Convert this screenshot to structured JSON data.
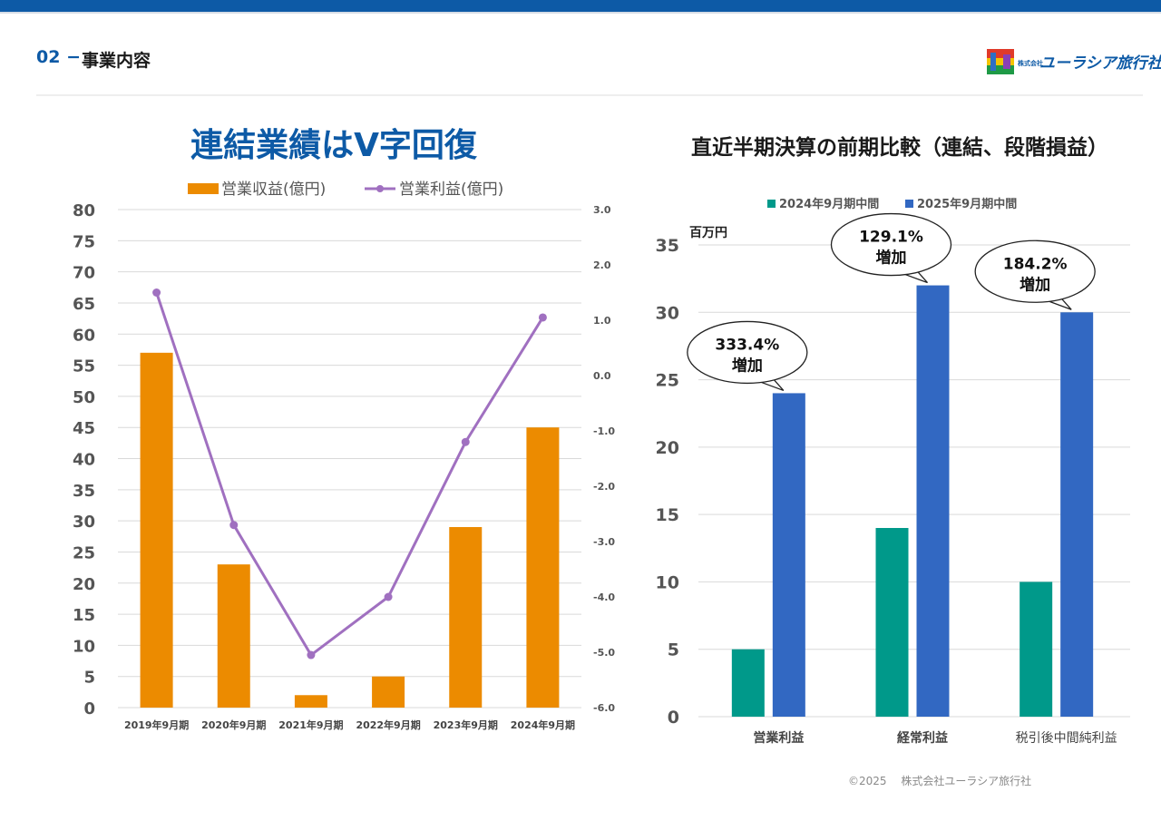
{
  "header": {
    "section_number": "02",
    "section_dash": "−",
    "section_title": "事業内容",
    "logo_badge_text": "株式会社",
    "logo_text": "ユーラシア旅行社"
  },
  "footer": {
    "copyright": "©2025　 株式会社ユーラシア旅行社"
  },
  "colors": {
    "primary": "#0d5aa6",
    "bar_orange": "#ec8b00",
    "line_purple": "#a070c0",
    "bar_teal": "#00998a",
    "bar_blue": "#3268c2",
    "title_blue": "#0d5aa6"
  },
  "chart_data": [
    {
      "type": "bar",
      "title": "連結業績はV字回復",
      "categories": [
        "2019年9月期",
        "2020年9月期",
        "2021年9月期",
        "2022年9月期",
        "2023年9月期",
        "2024年9月期"
      ],
      "series": [
        {
          "name": "営業収益(億円)",
          "type": "bar",
          "axis": "left",
          "values": [
            57,
            23,
            2,
            5,
            29,
            45
          ]
        },
        {
          "name": "営業利益(億円)",
          "type": "line",
          "axis": "right",
          "values": [
            1.5,
            -2.7,
            -5.05,
            -4.0,
            -1.2,
            1.05
          ]
        }
      ],
      "ylim": [
        0,
        80
      ],
      "yticks": [
        "0",
        "5",
        "10",
        "15",
        "20",
        "25",
        "30",
        "35",
        "40",
        "45",
        "50",
        "55",
        "60",
        "65",
        "70",
        "75",
        "80"
      ],
      "y2lim": [
        -6,
        3
      ],
      "y2ticks": [
        "-6.0",
        "-5.0",
        "-4.0",
        "-3.0",
        "-2.0",
        "-1.0",
        "0.0",
        "1.0",
        "2.0",
        "3.0"
      ],
      "grid": true,
      "legend_position": "top"
    },
    {
      "type": "bar",
      "title": "直近半期決算の前期比較（連結、段階損益）",
      "ylabel": "百万円",
      "categories": [
        "営業利益",
        "経常利益",
        "税引後中間純利益"
      ],
      "series": [
        {
          "name": "2024年9月期中間",
          "values": [
            5,
            14,
            10
          ]
        },
        {
          "name": "2025年9月期中間",
          "values": [
            24,
            32,
            30
          ]
        }
      ],
      "ylim": [
        0,
        35
      ],
      "yticks": [
        "0",
        "5",
        "10",
        "15",
        "20",
        "25",
        "30",
        "35"
      ],
      "annotations": [
        {
          "category": "営業利益",
          "line1": "333.4%",
          "line2": "増加"
        },
        {
          "category": "経常利益",
          "line1": "129.1%",
          "line2": "増加"
        },
        {
          "category": "税引後中間純利益",
          "line1": "184.2%",
          "line2": "増加"
        }
      ],
      "grid": true,
      "legend_position": "top"
    }
  ]
}
